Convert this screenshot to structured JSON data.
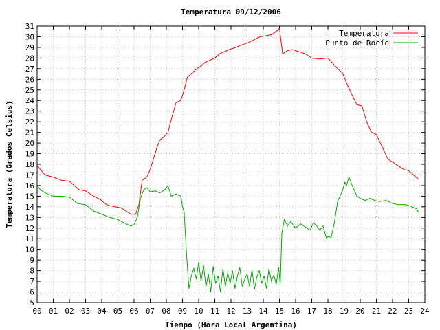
{
  "chart_data": {
    "type": "line",
    "title": "Temperatura 09/12/2006",
    "xlabel": "Tiempo (Hora Local Argentina)",
    "ylabel": "Temperatura (Grados Celsius)",
    "xlim": [
      0,
      24
    ],
    "ylim": [
      5,
      31
    ],
    "x_ticks": [
      "00",
      "01",
      "02",
      "03",
      "04",
      "05",
      "06",
      "07",
      "08",
      "09",
      "10",
      "11",
      "12",
      "13",
      "14",
      "15",
      "16",
      "17",
      "18",
      "19",
      "20",
      "21",
      "22",
      "23",
      "24"
    ],
    "y_ticks": [
      "5",
      "6",
      "7",
      "8",
      "9",
      "10",
      "11",
      "12",
      "13",
      "14",
      "15",
      "16",
      "17",
      "18",
      "19",
      "20",
      "21",
      "22",
      "23",
      "24",
      "25",
      "26",
      "27",
      "28",
      "29",
      "30",
      "31"
    ],
    "grid": true,
    "legend_position": "top-right",
    "series": [
      {
        "name": "Temperatura",
        "color": "#ff0000",
        "x": [
          0.0,
          0.2,
          0.5,
          1.0,
          1.5,
          2.0,
          2.3,
          2.6,
          3.0,
          3.5,
          3.9,
          4.3,
          4.8,
          5.2,
          5.5,
          5.8,
          6.1,
          6.3,
          6.5,
          6.8,
          7.0,
          7.2,
          7.4,
          7.6,
          7.8,
          8.1,
          8.3,
          8.6,
          8.9,
          9.1,
          9.3,
          9.6,
          9.9,
          10.1,
          10.4,
          10.7,
          11.0,
          11.3,
          11.6,
          11.9,
          12.3,
          12.6,
          13.0,
          13.4,
          13.8,
          14.2,
          14.5,
          14.8,
          15.0,
          15.1,
          15.2,
          15.3,
          15.5,
          15.8,
          16.2,
          16.6,
          17.0,
          17.5,
          18.0,
          18.3,
          18.6,
          18.9,
          19.2,
          19.5,
          19.8,
          20.1,
          20.4,
          20.7,
          21.0,
          21.4,
          21.7,
          22.0,
          22.4,
          22.7,
          23.0,
          23.3,
          23.6
        ],
        "y": [
          17.9,
          17.5,
          17.0,
          16.8,
          16.5,
          16.4,
          16.0,
          15.6,
          15.5,
          15.0,
          14.7,
          14.2,
          14.0,
          13.9,
          13.6,
          13.3,
          13.3,
          14.2,
          16.5,
          16.8,
          17.5,
          18.5,
          19.5,
          20.3,
          20.5,
          21.0,
          22.2,
          23.8,
          24.0,
          25.0,
          26.2,
          26.6,
          27.0,
          27.2,
          27.6,
          27.8,
          28.0,
          28.4,
          28.6,
          28.8,
          29.0,
          29.2,
          29.4,
          29.7,
          30.0,
          30.1,
          30.2,
          30.5,
          30.8,
          29.6,
          28.4,
          28.5,
          28.7,
          28.8,
          28.6,
          28.4,
          28.0,
          27.9,
          28.0,
          27.5,
          27.0,
          26.6,
          25.5,
          24.5,
          23.6,
          23.5,
          22.0,
          21.0,
          20.8,
          19.5,
          18.5,
          18.2,
          17.8,
          17.5,
          17.4,
          17.0,
          16.6
        ]
      },
      {
        "name": "Punto de Rocío",
        "color": "#00aa00",
        "x": [
          0.0,
          0.2,
          0.5,
          1.0,
          1.5,
          2.0,
          2.5,
          3.0,
          3.5,
          4.0,
          4.5,
          5.0,
          5.5,
          5.8,
          6.0,
          6.2,
          6.4,
          6.6,
          6.8,
          7.0,
          7.3,
          7.6,
          7.9,
          8.1,
          8.3,
          8.6,
          8.9,
          9.0,
          9.1,
          9.25,
          9.4,
          9.55,
          9.7,
          9.85,
          10.0,
          10.15,
          10.3,
          10.45,
          10.6,
          10.75,
          10.9,
          11.05,
          11.2,
          11.35,
          11.5,
          11.65,
          11.8,
          11.95,
          12.1,
          12.25,
          12.4,
          12.55,
          12.7,
          12.85,
          13.0,
          13.15,
          13.3,
          13.45,
          13.6,
          13.75,
          13.9,
          14.05,
          14.2,
          14.35,
          14.5,
          14.65,
          14.8,
          14.95,
          15.0,
          15.05,
          15.15,
          15.3,
          15.5,
          15.7,
          16.0,
          16.3,
          16.6,
          16.9,
          17.1,
          17.3,
          17.5,
          17.7,
          17.9,
          18.05,
          18.2,
          18.4,
          18.6,
          18.9,
          19.05,
          19.15,
          19.3,
          19.5,
          19.8,
          20.0,
          20.3,
          20.6,
          20.9,
          21.2,
          21.6,
          22.0,
          22.4,
          22.8,
          23.2,
          23.5,
          23.6
        ],
        "y": [
          16.0,
          15.6,
          15.3,
          15.0,
          15.0,
          14.9,
          14.3,
          14.2,
          13.6,
          13.3,
          13.0,
          12.8,
          12.4,
          12.2,
          12.3,
          13.0,
          14.8,
          15.6,
          15.8,
          15.4,
          15.5,
          15.3,
          15.6,
          16.0,
          15.0,
          15.2,
          15.0,
          14.0,
          13.5,
          9.5,
          6.3,
          7.5,
          8.2,
          7.2,
          8.8,
          7.0,
          8.5,
          6.5,
          7.7,
          6.0,
          8.4,
          6.8,
          7.5,
          6.0,
          8.2,
          6.5,
          7.8,
          6.8,
          8.0,
          6.3,
          7.5,
          8.3,
          6.5,
          7.2,
          7.7,
          6.5,
          8.1,
          6.2,
          7.4,
          8.0,
          6.8,
          7.5,
          6.3,
          8.2,
          7.0,
          7.6,
          6.7,
          8.3,
          7.5,
          6.8,
          11.5,
          12.8,
          12.2,
          12.6,
          12.0,
          12.4,
          12.1,
          11.8,
          12.5,
          12.2,
          11.8,
          12.2,
          11.1,
          11.2,
          11.1,
          12.5,
          14.5,
          15.5,
          16.3,
          16.0,
          16.8,
          16.0,
          15.0,
          14.8,
          14.6,
          14.8,
          14.6,
          14.5,
          14.6,
          14.3,
          14.2,
          14.2,
          14.0,
          13.8,
          13.5
        ]
      }
    ]
  }
}
